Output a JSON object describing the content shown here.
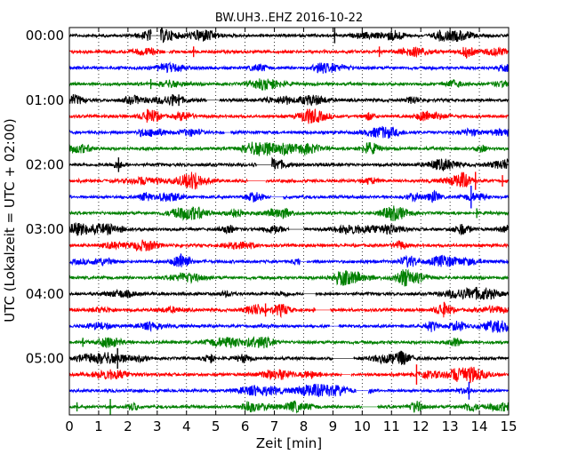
{
  "chart_data": {
    "type": "line",
    "title": "BW.UH3..EHZ 2016-10-22",
    "xlabel": "Zeit  [min]",
    "ylabel": "UTC (Lokalzeit = UTC + 02:00)",
    "xlim": [
      0,
      15
    ],
    "x_ticks": [
      "0",
      "1",
      "2",
      "3",
      "4",
      "5",
      "6",
      "7",
      "8",
      "9",
      "10",
      "11",
      "12",
      "13",
      "14",
      "15"
    ],
    "y_ticks": [
      {
        "label": "00:00",
        "row": 0
      },
      {
        "label": "01:00",
        "row": 4
      },
      {
        "label": "02:00",
        "row": 8
      },
      {
        "label": "03:00",
        "row": 12
      },
      {
        "label": "04:00",
        "row": 16
      },
      {
        "label": "05:00",
        "row": 20
      }
    ],
    "grid": "vertical dotted at each minute",
    "row_minutes": 15,
    "row_count": 24,
    "color_cycle": [
      "#000000",
      "#ff0000",
      "#0000ff",
      "#008000"
    ],
    "series": [
      {
        "start": "00:00",
        "color": "#000000",
        "gaps": [
          [
            2.8,
            3.1
          ]
        ]
      },
      {
        "start": "00:15",
        "color": "#ff0000",
        "gaps": [
          [
            3.3,
            3.4
          ]
        ]
      },
      {
        "start": "00:30",
        "color": "#0000ff",
        "gaps": []
      },
      {
        "start": "00:45",
        "color": "#008000",
        "gaps": []
      },
      {
        "start": "01:00",
        "color": "#000000",
        "gaps": [
          [
            4.7,
            5.1
          ]
        ]
      },
      {
        "start": "01:15",
        "color": "#ff0000",
        "gaps": []
      },
      {
        "start": "01:30",
        "color": "#0000ff",
        "gaps": [
          [
            5.3,
            5.5
          ]
        ]
      },
      {
        "start": "01:45",
        "color": "#008000",
        "gaps": []
      },
      {
        "start": "02:00",
        "color": "#000000",
        "gaps": [
          [
            6.4,
            6.9
          ]
        ]
      },
      {
        "start": "02:15",
        "color": "#ff0000",
        "gaps": [
          [
            6.1,
            6.7
          ]
        ]
      },
      {
        "start": "02:30",
        "color": "#0000ff",
        "gaps": [
          [
            6.9,
            7.3
          ]
        ]
      },
      {
        "start": "02:45",
        "color": "#008000",
        "gaps": []
      },
      {
        "start": "03:00",
        "color": "#000000",
        "gaps": [
          [
            7.5,
            8.0
          ]
        ]
      },
      {
        "start": "03:15",
        "color": "#ff0000",
        "gaps": []
      },
      {
        "start": "03:30",
        "color": "#0000ff",
        "gaps": [
          [
            7.9,
            8.1
          ]
        ]
      },
      {
        "start": "03:45",
        "color": "#008000",
        "gaps": []
      },
      {
        "start": "04:00",
        "color": "#000000",
        "gaps": [
          [
            8.0,
            8.4
          ]
        ]
      },
      {
        "start": "04:15",
        "color": "#ff0000",
        "gaps": [
          [
            8.4,
            8.9
          ]
        ]
      },
      {
        "start": "04:30",
        "color": "#0000ff",
        "gaps": [
          [
            8.9,
            9.2
          ]
        ]
      },
      {
        "start": "04:45",
        "color": "#008000",
        "gaps": []
      },
      {
        "start": "05:00",
        "color": "#000000",
        "gaps": [
          [
            9.0,
            9.7
          ]
        ]
      },
      {
        "start": "05:15",
        "color": "#ff0000",
        "gaps": [
          [
            9.3,
            9.6
          ]
        ]
      },
      {
        "start": "05:30",
        "color": "#0000ff",
        "gaps": [
          [
            9.8,
            10.2
          ]
        ]
      },
      {
        "start": "05:45",
        "color": "#008000",
        "gaps": [
          [
            10.0,
            10.5
          ]
        ]
      }
    ]
  }
}
